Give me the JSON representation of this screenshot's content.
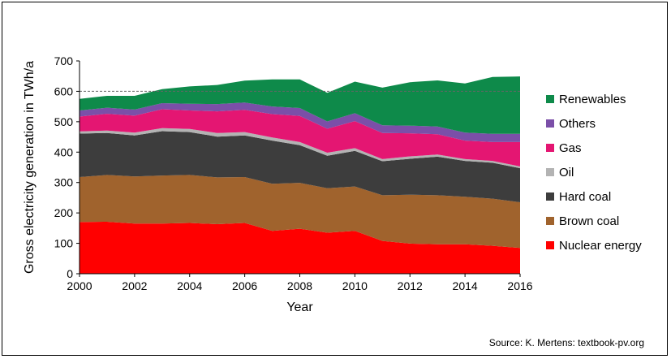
{
  "chart_data": {
    "type": "area",
    "stacked": true,
    "title": "",
    "xlabel": "Year",
    "ylabel": "Gross electricity generation in TWh/a",
    "xlim": [
      2000,
      2016
    ],
    "ylim": [
      0,
      700
    ],
    "x_ticks": [
      "2000",
      "2002",
      "2004",
      "2006",
      "2008",
      "2010",
      "2012",
      "2014",
      "2016"
    ],
    "y_ticks": [
      "0",
      "100",
      "200",
      "300",
      "400",
      "500",
      "600",
      "700"
    ],
    "reference_line": 600,
    "grid": false,
    "legend_position": "right",
    "x": [
      2000,
      2001,
      2002,
      2003,
      2004,
      2005,
      2006,
      2007,
      2008,
      2009,
      2010,
      2011,
      2012,
      2013,
      2014,
      2015,
      2016
    ],
    "series": [
      {
        "name": "Nuclear energy",
        "color": "#ff0000",
        "values": [
          170,
          171,
          165,
          165,
          167,
          163,
          167,
          141,
          148,
          135,
          141,
          108,
          99,
          97,
          97,
          92,
          85
        ]
      },
      {
        "name": "Brown coal",
        "color": "#a0632d",
        "values": [
          148,
          154,
          155,
          158,
          158,
          154,
          151,
          155,
          151,
          146,
          146,
          150,
          161,
          161,
          156,
          155,
          150
        ]
      },
      {
        "name": "Hard coal",
        "color": "#3d3d3d",
        "values": [
          143,
          138,
          135,
          146,
          141,
          134,
          137,
          142,
          124,
          107,
          117,
          112,
          118,
          127,
          118,
          118,
          112
        ]
      },
      {
        "name": "Oil",
        "color": "#b3b3b3",
        "values": [
          7,
          8,
          9,
          10,
          10,
          12,
          11,
          10,
          10,
          10,
          9,
          7,
          8,
          7,
          6,
          6,
          6
        ]
      },
      {
        "name": "Gas",
        "color": "#e41672",
        "values": [
          49,
          55,
          56,
          62,
          61,
          71,
          73,
          77,
          86,
          79,
          89,
          86,
          76,
          67,
          61,
          62,
          80
        ]
      },
      {
        "name": "Others",
        "color": "#7b4fa8",
        "values": [
          20,
          20,
          20,
          20,
          22,
          24,
          24,
          25,
          26,
          24,
          26,
          25,
          25,
          25,
          26,
          27,
          27
        ]
      },
      {
        "name": "Renewables",
        "color": "#0e8a4a",
        "values": [
          38,
          39,
          45,
          46,
          57,
          63,
          72,
          89,
          94,
          94,
          104,
          124,
          143,
          152,
          162,
          187,
          189
        ]
      }
    ],
    "source": "Source: K. Mertens: textbook-pv.org"
  }
}
